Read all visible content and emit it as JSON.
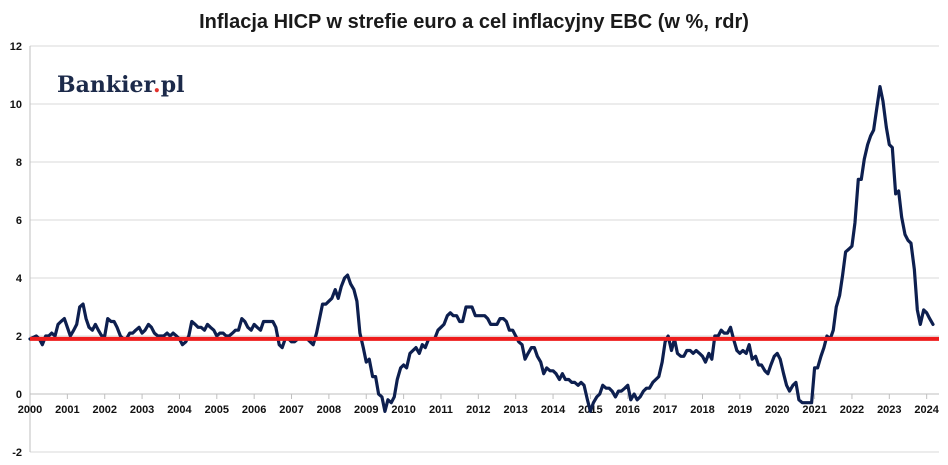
{
  "chart_data": {
    "type": "line",
    "title": "Inflacja HICP w strefie euro a cel inflacyjny EBC (w %, rdr)",
    "logo": {
      "text_before_dot": "Bankier",
      "dot": ".",
      "text_after_dot": "pl",
      "dot_color": "#e2312c"
    },
    "xlim": [
      2000,
      2024.33
    ],
    "ylim": [
      -2,
      12
    ],
    "y_ticks": [
      -2,
      0,
      2,
      4,
      6,
      8,
      10,
      12
    ],
    "x_ticks": [
      2000,
      2001,
      2002,
      2003,
      2004,
      2005,
      2006,
      2007,
      2008,
      2009,
      2010,
      2011,
      2012,
      2013,
      2014,
      2015,
      2016,
      2017,
      2018,
      2019,
      2020,
      2021,
      2022,
      2023,
      2024
    ],
    "grid": "horizontal",
    "legend": "none",
    "colors": {
      "series": "#0d1f4f",
      "target": "#ee1c1c",
      "grid": "#d9d9d9",
      "axis": "#bfbfbf"
    },
    "series": [
      {
        "kind": "line",
        "points": [
          [
            2000.0,
            1.9
          ],
          [
            2000.17,
            2.0
          ],
          [
            2000.25,
            1.9
          ],
          [
            2000.33,
            1.7
          ],
          [
            2000.42,
            2.0
          ],
          [
            2000.5,
            2.0
          ],
          [
            2000.58,
            2.1
          ],
          [
            2000.67,
            2.0
          ],
          [
            2000.75,
            2.4
          ],
          [
            2000.83,
            2.5
          ],
          [
            2000.92,
            2.6
          ],
          [
            2001.0,
            2.3
          ],
          [
            2001.08,
            2.0
          ],
          [
            2001.17,
            2.2
          ],
          [
            2001.25,
            2.4
          ],
          [
            2001.33,
            3.0
          ],
          [
            2001.42,
            3.1
          ],
          [
            2001.5,
            2.6
          ],
          [
            2001.58,
            2.3
          ],
          [
            2001.67,
            2.2
          ],
          [
            2001.75,
            2.4
          ],
          [
            2001.83,
            2.2
          ],
          [
            2001.92,
            2.0
          ],
          [
            2002.0,
            2.0
          ],
          [
            2002.08,
            2.6
          ],
          [
            2002.17,
            2.5
          ],
          [
            2002.25,
            2.5
          ],
          [
            2002.33,
            2.3
          ],
          [
            2002.42,
            2.0
          ],
          [
            2002.5,
            1.9
          ],
          [
            2002.58,
            1.9
          ],
          [
            2002.67,
            2.1
          ],
          [
            2002.75,
            2.1
          ],
          [
            2002.83,
            2.2
          ],
          [
            2002.92,
            2.3
          ],
          [
            2003.0,
            2.1
          ],
          [
            2003.08,
            2.2
          ],
          [
            2003.17,
            2.4
          ],
          [
            2003.25,
            2.3
          ],
          [
            2003.33,
            2.1
          ],
          [
            2003.42,
            2.0
          ],
          [
            2003.5,
            2.0
          ],
          [
            2003.58,
            2.0
          ],
          [
            2003.67,
            2.1
          ],
          [
            2003.75,
            2.0
          ],
          [
            2003.83,
            2.1
          ],
          [
            2003.92,
            2.0
          ],
          [
            2004.0,
            1.9
          ],
          [
            2004.08,
            1.7
          ],
          [
            2004.17,
            1.8
          ],
          [
            2004.25,
            2.0
          ],
          [
            2004.33,
            2.5
          ],
          [
            2004.42,
            2.4
          ],
          [
            2004.5,
            2.3
          ],
          [
            2004.58,
            2.3
          ],
          [
            2004.67,
            2.2
          ],
          [
            2004.75,
            2.4
          ],
          [
            2004.83,
            2.3
          ],
          [
            2004.92,
            2.2
          ],
          [
            2005.0,
            2.0
          ],
          [
            2005.08,
            2.1
          ],
          [
            2005.17,
            2.1
          ],
          [
            2005.25,
            2.0
          ],
          [
            2005.33,
            2.0
          ],
          [
            2005.42,
            2.1
          ],
          [
            2005.5,
            2.2
          ],
          [
            2005.58,
            2.2
          ],
          [
            2005.67,
            2.6
          ],
          [
            2005.75,
            2.5
          ],
          [
            2005.83,
            2.3
          ],
          [
            2005.92,
            2.2
          ],
          [
            2006.0,
            2.4
          ],
          [
            2006.08,
            2.3
          ],
          [
            2006.17,
            2.2
          ],
          [
            2006.25,
            2.5
          ],
          [
            2006.33,
            2.5
          ],
          [
            2006.42,
            2.5
          ],
          [
            2006.5,
            2.5
          ],
          [
            2006.58,
            2.3
          ],
          [
            2006.67,
            1.7
          ],
          [
            2006.75,
            1.6
          ],
          [
            2006.83,
            1.9
          ],
          [
            2006.92,
            1.9
          ],
          [
            2007.0,
            1.8
          ],
          [
            2007.08,
            1.8
          ],
          [
            2007.17,
            1.9
          ],
          [
            2007.25,
            1.9
          ],
          [
            2007.33,
            1.9
          ],
          [
            2007.42,
            1.9
          ],
          [
            2007.5,
            1.8
          ],
          [
            2007.58,
            1.7
          ],
          [
            2007.67,
            2.1
          ],
          [
            2007.75,
            2.6
          ],
          [
            2007.83,
            3.1
          ],
          [
            2007.92,
            3.1
          ],
          [
            2008.0,
            3.2
          ],
          [
            2008.08,
            3.3
          ],
          [
            2008.17,
            3.6
          ],
          [
            2008.25,
            3.3
          ],
          [
            2008.33,
            3.7
          ],
          [
            2008.42,
            4.0
          ],
          [
            2008.5,
            4.1
          ],
          [
            2008.58,
            3.8
          ],
          [
            2008.67,
            3.6
          ],
          [
            2008.75,
            3.2
          ],
          [
            2008.83,
            2.1
          ],
          [
            2008.92,
            1.6
          ],
          [
            2009.0,
            1.1
          ],
          [
            2009.08,
            1.2
          ],
          [
            2009.17,
            0.6
          ],
          [
            2009.25,
            0.6
          ],
          [
            2009.33,
            0.0
          ],
          [
            2009.42,
            -0.1
          ],
          [
            2009.5,
            -0.6
          ],
          [
            2009.58,
            -0.2
          ],
          [
            2009.67,
            -0.3
          ],
          [
            2009.75,
            -0.1
          ],
          [
            2009.83,
            0.5
          ],
          [
            2009.92,
            0.9
          ],
          [
            2010.0,
            1.0
          ],
          [
            2010.08,
            0.9
          ],
          [
            2010.17,
            1.4
          ],
          [
            2010.25,
            1.5
          ],
          [
            2010.33,
            1.6
          ],
          [
            2010.42,
            1.4
          ],
          [
            2010.5,
            1.7
          ],
          [
            2010.58,
            1.6
          ],
          [
            2010.67,
            1.9
          ],
          [
            2010.75,
            1.9
          ],
          [
            2010.83,
            1.9
          ],
          [
            2010.92,
            2.2
          ],
          [
            2011.0,
            2.3
          ],
          [
            2011.08,
            2.4
          ],
          [
            2011.17,
            2.7
          ],
          [
            2011.25,
            2.8
          ],
          [
            2011.33,
            2.7
          ],
          [
            2011.42,
            2.7
          ],
          [
            2011.5,
            2.5
          ],
          [
            2011.58,
            2.5
          ],
          [
            2011.67,
            3.0
          ],
          [
            2011.75,
            3.0
          ],
          [
            2011.83,
            3.0
          ],
          [
            2011.92,
            2.7
          ],
          [
            2012.0,
            2.7
          ],
          [
            2012.08,
            2.7
          ],
          [
            2012.17,
            2.7
          ],
          [
            2012.25,
            2.6
          ],
          [
            2012.33,
            2.4
          ],
          [
            2012.42,
            2.4
          ],
          [
            2012.5,
            2.4
          ],
          [
            2012.58,
            2.6
          ],
          [
            2012.67,
            2.6
          ],
          [
            2012.75,
            2.5
          ],
          [
            2012.83,
            2.2
          ],
          [
            2012.92,
            2.2
          ],
          [
            2013.0,
            2.0
          ],
          [
            2013.08,
            1.8
          ],
          [
            2013.17,
            1.7
          ],
          [
            2013.25,
            1.2
          ],
          [
            2013.33,
            1.4
          ],
          [
            2013.42,
            1.6
          ],
          [
            2013.5,
            1.6
          ],
          [
            2013.58,
            1.3
          ],
          [
            2013.67,
            1.1
          ],
          [
            2013.75,
            0.7
          ],
          [
            2013.83,
            0.9
          ],
          [
            2013.92,
            0.8
          ],
          [
            2014.0,
            0.8
          ],
          [
            2014.08,
            0.7
          ],
          [
            2014.17,
            0.5
          ],
          [
            2014.25,
            0.7
          ],
          [
            2014.33,
            0.5
          ],
          [
            2014.42,
            0.5
          ],
          [
            2014.5,
            0.4
          ],
          [
            2014.58,
            0.4
          ],
          [
            2014.67,
            0.3
          ],
          [
            2014.75,
            0.4
          ],
          [
            2014.83,
            0.3
          ],
          [
            2014.92,
            -0.2
          ],
          [
            2015.0,
            -0.6
          ],
          [
            2015.08,
            -0.3
          ],
          [
            2015.17,
            -0.1
          ],
          [
            2015.25,
            0.0
          ],
          [
            2015.33,
            0.3
          ],
          [
            2015.42,
            0.2
          ],
          [
            2015.5,
            0.2
          ],
          [
            2015.58,
            0.1
          ],
          [
            2015.67,
            -0.1
          ],
          [
            2015.75,
            0.1
          ],
          [
            2015.83,
            0.1
          ],
          [
            2015.92,
            0.2
          ],
          [
            2016.0,
            0.3
          ],
          [
            2016.08,
            -0.2
          ],
          [
            2016.17,
            0.0
          ],
          [
            2016.25,
            -0.2
          ],
          [
            2016.33,
            -0.1
          ],
          [
            2016.42,
            0.1
          ],
          [
            2016.5,
            0.2
          ],
          [
            2016.58,
            0.2
          ],
          [
            2016.67,
            0.4
          ],
          [
            2016.75,
            0.5
          ],
          [
            2016.83,
            0.6
          ],
          [
            2016.92,
            1.1
          ],
          [
            2017.0,
            1.8
          ],
          [
            2017.08,
            2.0
          ],
          [
            2017.17,
            1.5
          ],
          [
            2017.25,
            1.9
          ],
          [
            2017.33,
            1.4
          ],
          [
            2017.42,
            1.3
          ],
          [
            2017.5,
            1.3
          ],
          [
            2017.58,
            1.5
          ],
          [
            2017.67,
            1.5
          ],
          [
            2017.75,
            1.4
          ],
          [
            2017.83,
            1.5
          ],
          [
            2017.92,
            1.4
          ],
          [
            2018.0,
            1.3
          ],
          [
            2018.08,
            1.1
          ],
          [
            2018.17,
            1.4
          ],
          [
            2018.25,
            1.2
          ],
          [
            2018.33,
            2.0
          ],
          [
            2018.42,
            2.0
          ],
          [
            2018.5,
            2.2
          ],
          [
            2018.58,
            2.1
          ],
          [
            2018.67,
            2.1
          ],
          [
            2018.75,
            2.3
          ],
          [
            2018.83,
            1.9
          ],
          [
            2018.92,
            1.5
          ],
          [
            2019.0,
            1.4
          ],
          [
            2019.08,
            1.5
          ],
          [
            2019.17,
            1.4
          ],
          [
            2019.25,
            1.7
          ],
          [
            2019.33,
            1.2
          ],
          [
            2019.42,
            1.3
          ],
          [
            2019.5,
            1.0
          ],
          [
            2019.58,
            1.0
          ],
          [
            2019.67,
            0.8
          ],
          [
            2019.75,
            0.7
          ],
          [
            2019.83,
            1.0
          ],
          [
            2019.92,
            1.3
          ],
          [
            2020.0,
            1.4
          ],
          [
            2020.08,
            1.2
          ],
          [
            2020.17,
            0.7
          ],
          [
            2020.25,
            0.3
          ],
          [
            2020.33,
            0.1
          ],
          [
            2020.42,
            0.3
          ],
          [
            2020.5,
            0.4
          ],
          [
            2020.58,
            -0.2
          ],
          [
            2020.67,
            -0.3
          ],
          [
            2020.75,
            -0.3
          ],
          [
            2020.83,
            -0.3
          ],
          [
            2020.92,
            -0.3
          ],
          [
            2021.0,
            0.9
          ],
          [
            2021.08,
            0.9
          ],
          [
            2021.17,
            1.3
          ],
          [
            2021.25,
            1.6
          ],
          [
            2021.33,
            2.0
          ],
          [
            2021.42,
            1.9
          ],
          [
            2021.5,
            2.2
          ],
          [
            2021.58,
            3.0
          ],
          [
            2021.67,
            3.4
          ],
          [
            2021.75,
            4.1
          ],
          [
            2021.83,
            4.9
          ],
          [
            2021.92,
            5.0
          ],
          [
            2022.0,
            5.1
          ],
          [
            2022.08,
            5.9
          ],
          [
            2022.17,
            7.4
          ],
          [
            2022.25,
            7.4
          ],
          [
            2022.33,
            8.1
          ],
          [
            2022.42,
            8.6
          ],
          [
            2022.5,
            8.9
          ],
          [
            2022.58,
            9.1
          ],
          [
            2022.67,
            9.9
          ],
          [
            2022.75,
            10.6
          ],
          [
            2022.83,
            10.1
          ],
          [
            2022.92,
            9.2
          ],
          [
            2023.0,
            8.6
          ],
          [
            2023.08,
            8.5
          ],
          [
            2023.17,
            6.9
          ],
          [
            2023.25,
            7.0
          ],
          [
            2023.33,
            6.1
          ],
          [
            2023.42,
            5.5
          ],
          [
            2023.5,
            5.3
          ],
          [
            2023.58,
            5.2
          ],
          [
            2023.67,
            4.3
          ],
          [
            2023.75,
            2.9
          ],
          [
            2023.83,
            2.4
          ],
          [
            2023.92,
            2.9
          ],
          [
            2024.0,
            2.8
          ],
          [
            2024.08,
            2.6
          ],
          [
            2024.17,
            2.4
          ]
        ]
      },
      {
        "kind": "target",
        "points": [
          [
            2000.0,
            1.9
          ],
          [
            2024.33,
            1.9
          ]
        ]
      }
    ]
  }
}
